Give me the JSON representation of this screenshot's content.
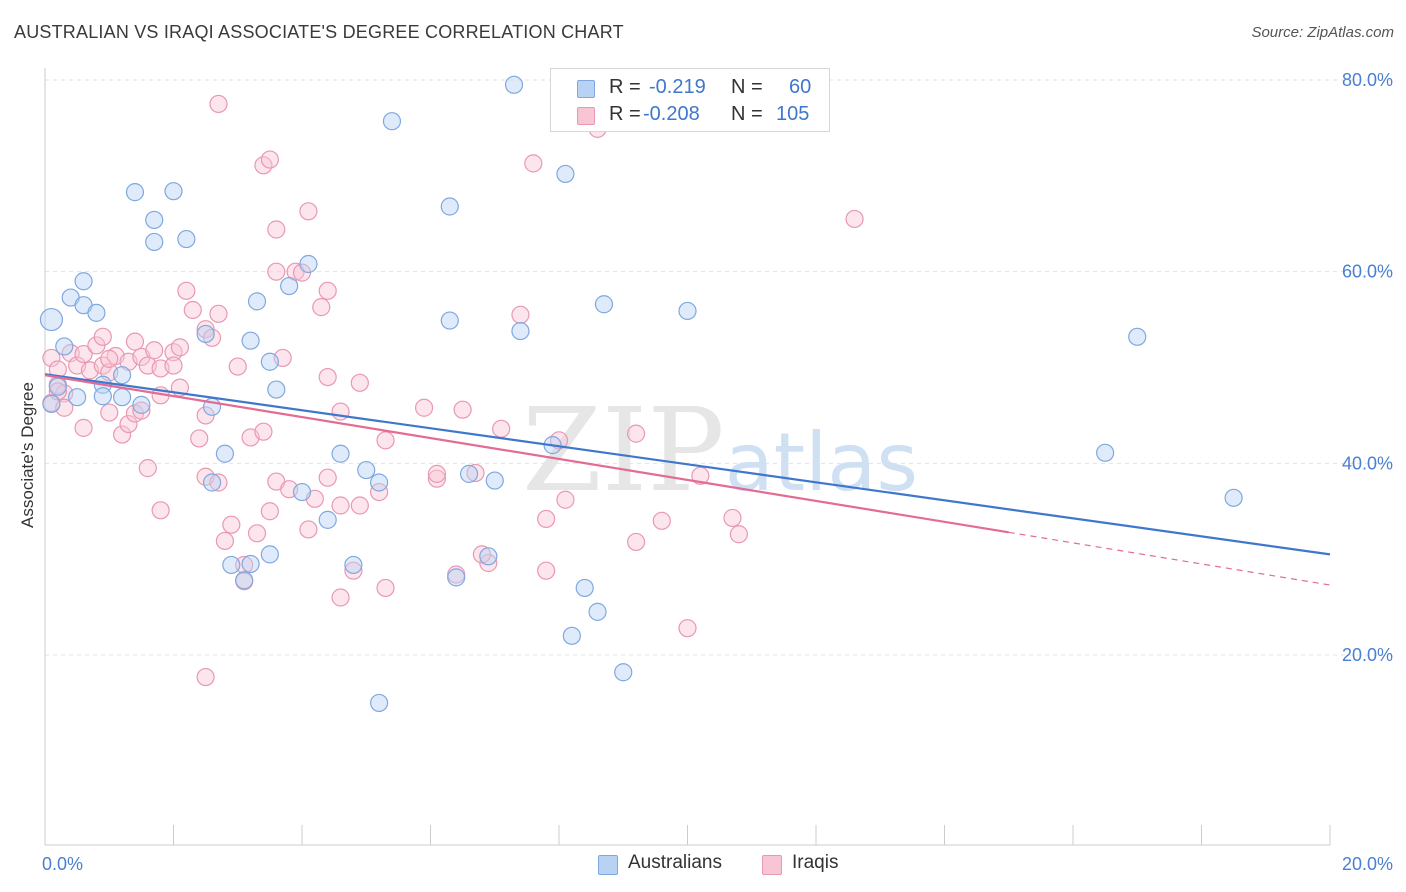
{
  "title": "AUSTRALIAN VS IRAQI ASSOCIATE'S DEGREE CORRELATION CHART",
  "source": "Source: ZipAtlas.com",
  "watermark": "ZIPatlas",
  "colors": {
    "blue": "#3f77cc",
    "blue_fill": "#b8d2f3",
    "pink": "#e36b94",
    "pink_fill": "#f8c5d5",
    "tick": "#4a7fd1"
  },
  "legend": {
    "rows": [
      {
        "r_label": "R =",
        "r_value": "-0.219",
        "n_label": "N =",
        "n_value": "60"
      },
      {
        "r_label": "R =",
        "r_value": "-0.208",
        "n_label": "N =",
        "n_value": "105"
      }
    ]
  },
  "bottom_legend": {
    "australians": "Australians",
    "iraqis": "Iraqis"
  },
  "chart_data": {
    "type": "scatter",
    "ylabel": "Associate's Degree",
    "xlim": [
      0,
      20
    ],
    "ylim": [
      0,
      82
    ],
    "x_ticks": [
      "0.0%",
      "20.0%"
    ],
    "y_ticks": [
      {
        "value": 20,
        "label": "20.0%"
      },
      {
        "value": 40,
        "label": "40.0%"
      },
      {
        "value": 60,
        "label": "60.0%"
      },
      {
        "value": 80,
        "label": "80.0%"
      }
    ],
    "grid": true,
    "legend_position": "top-center",
    "series": [
      {
        "name": "Australians",
        "color": "#3f77cc",
        "trend": {
          "x": [
            0,
            20
          ],
          "y": [
            49.3,
            30.5
          ]
        },
        "points": [
          [
            0.1,
            55.0
          ],
          [
            0.4,
            57.3
          ],
          [
            0.6,
            56.5
          ],
          [
            0.8,
            55.7
          ],
          [
            0.3,
            52.2
          ],
          [
            0.1,
            46.2
          ],
          [
            0.2,
            48.0
          ],
          [
            0.9,
            48.2
          ],
          [
            1.2,
            49.2
          ],
          [
            0.9,
            47.0
          ],
          [
            1.2,
            46.9
          ],
          [
            1.5,
            46.1
          ],
          [
            1.4,
            68.3
          ],
          [
            1.7,
            65.4
          ],
          [
            2.0,
            68.4
          ],
          [
            1.7,
            63.1
          ],
          [
            2.2,
            63.4
          ],
          [
            0.6,
            59.0
          ],
          [
            2.5,
            53.5
          ],
          [
            2.6,
            38.0
          ],
          [
            2.6,
            45.9
          ],
          [
            2.8,
            41.0
          ],
          [
            3.2,
            52.8
          ],
          [
            3.3,
            56.9
          ],
          [
            3.2,
            29.5
          ],
          [
            2.9,
            29.4
          ],
          [
            3.1,
            27.8
          ],
          [
            3.5,
            50.6
          ],
          [
            3.6,
            47.7
          ],
          [
            3.8,
            58.5
          ],
          [
            4.1,
            60.8
          ],
          [
            4.0,
            37.0
          ],
          [
            4.4,
            34.1
          ],
          [
            3.5,
            30.5
          ],
          [
            4.8,
            29.4
          ],
          [
            4.6,
            41.0
          ],
          [
            5.2,
            38.0
          ],
          [
            5.4,
            75.7
          ],
          [
            5.0,
            39.3
          ],
          [
            5.2,
            15.0
          ],
          [
            6.3,
            66.8
          ],
          [
            6.3,
            54.9
          ],
          [
            6.6,
            38.9
          ],
          [
            6.4,
            28.1
          ],
          [
            7.0,
            38.2
          ],
          [
            6.9,
            30.3
          ],
          [
            7.4,
            53.8
          ],
          [
            7.9,
            41.9
          ],
          [
            8.1,
            70.2
          ],
          [
            8.2,
            22.0
          ],
          [
            8.4,
            27.0
          ],
          [
            8.6,
            24.5
          ],
          [
            8.7,
            56.6
          ],
          [
            9.0,
            18.2
          ],
          [
            7.3,
            79.5
          ],
          [
            10.0,
            55.9
          ],
          [
            16.5,
            41.1
          ],
          [
            17.0,
            53.2
          ],
          [
            18.5,
            36.4
          ],
          [
            0.5,
            46.9
          ]
        ]
      },
      {
        "name": "Iraqis",
        "color": "#e36b94",
        "trend": {
          "x": [
            0,
            15
          ],
          "y": [
            49.2,
            32.8
          ]
        },
        "trend_dashed": {
          "x": [
            15,
            20
          ],
          "y": [
            32.8,
            27.3
          ]
        },
        "points": [
          [
            0.1,
            51.0
          ],
          [
            0.2,
            49.8
          ],
          [
            0.2,
            48.2
          ],
          [
            0.3,
            47.3
          ],
          [
            0.1,
            46.3
          ],
          [
            0.4,
            51.5
          ],
          [
            0.5,
            50.2
          ],
          [
            0.6,
            51.4
          ],
          [
            0.7,
            49.7
          ],
          [
            0.8,
            52.3
          ],
          [
            0.9,
            53.2
          ],
          [
            0.9,
            50.2
          ],
          [
            1.0,
            49.5
          ],
          [
            1.1,
            51.2
          ],
          [
            1.3,
            50.6
          ],
          [
            1.4,
            52.7
          ],
          [
            1.5,
            51.1
          ],
          [
            1.6,
            50.2
          ],
          [
            1.7,
            51.8
          ],
          [
            1.8,
            49.9
          ],
          [
            2.0,
            51.6
          ],
          [
            2.1,
            52.1
          ],
          [
            2.2,
            58.0
          ],
          [
            2.3,
            56.0
          ],
          [
            2.5,
            54.0
          ],
          [
            2.6,
            53.1
          ],
          [
            2.7,
            55.6
          ],
          [
            1.0,
            45.3
          ],
          [
            1.2,
            43.0
          ],
          [
            1.3,
            44.1
          ],
          [
            1.4,
            45.2
          ],
          [
            1.8,
            47.1
          ],
          [
            0.6,
            43.7
          ],
          [
            0.3,
            45.8
          ],
          [
            1.6,
            39.5
          ],
          [
            1.8,
            35.1
          ],
          [
            2.1,
            47.9
          ],
          [
            2.4,
            42.6
          ],
          [
            2.5,
            38.6
          ],
          [
            2.8,
            31.9
          ],
          [
            2.9,
            33.6
          ],
          [
            3.1,
            29.4
          ],
          [
            3.3,
            32.7
          ],
          [
            3.5,
            35.0
          ],
          [
            3.2,
            42.7
          ],
          [
            3.6,
            38.1
          ],
          [
            3.8,
            37.3
          ],
          [
            4.1,
            33.1
          ],
          [
            4.2,
            36.3
          ],
          [
            4.4,
            38.5
          ],
          [
            4.6,
            35.6
          ],
          [
            4.8,
            28.8
          ],
          [
            4.9,
            35.6
          ],
          [
            5.2,
            37.0
          ],
          [
            5.3,
            27.0
          ],
          [
            5.9,
            45.8
          ],
          [
            6.1,
            38.4
          ],
          [
            6.4,
            28.4
          ],
          [
            6.7,
            39.0
          ],
          [
            6.9,
            29.6
          ],
          [
            7.4,
            55.5
          ],
          [
            7.1,
            43.6
          ],
          [
            7.8,
            28.8
          ],
          [
            8.0,
            42.4
          ],
          [
            3.9,
            60.0
          ],
          [
            3.7,
            51.0
          ],
          [
            3.6,
            60.0
          ],
          [
            4.1,
            66.3
          ],
          [
            4.4,
            58.0
          ],
          [
            3.4,
            43.3
          ],
          [
            2.5,
            17.7
          ],
          [
            2.7,
            38.0
          ],
          [
            3.1,
            27.7
          ],
          [
            3.4,
            71.1
          ],
          [
            3.5,
            71.7
          ],
          [
            3.6,
            64.4
          ],
          [
            2.7,
            77.5
          ],
          [
            4.0,
            59.9
          ],
          [
            2.5,
            45.0
          ],
          [
            4.6,
            26.0
          ],
          [
            4.3,
            56.3
          ],
          [
            4.4,
            49.0
          ],
          [
            4.6,
            45.4
          ],
          [
            4.9,
            48.4
          ],
          [
            5.3,
            42.4
          ],
          [
            6.1,
            38.9
          ],
          [
            6.5,
            45.6
          ],
          [
            6.8,
            30.5
          ],
          [
            7.6,
            71.3
          ],
          [
            7.8,
            34.2
          ],
          [
            8.1,
            36.2
          ],
          [
            8.6,
            74.9
          ],
          [
            9.2,
            43.1
          ],
          [
            9.2,
            31.8
          ],
          [
            9.6,
            34.0
          ],
          [
            10.0,
            22.8
          ],
          [
            10.2,
            38.7
          ],
          [
            10.7,
            34.3
          ],
          [
            10.8,
            32.6
          ],
          [
            12.6,
            65.5
          ],
          [
            0.2,
            47.5
          ],
          [
            1.0,
            50.9
          ],
          [
            2.0,
            50.2
          ],
          [
            3.0,
            50.1
          ],
          [
            1.5,
            45.5
          ]
        ]
      }
    ]
  }
}
